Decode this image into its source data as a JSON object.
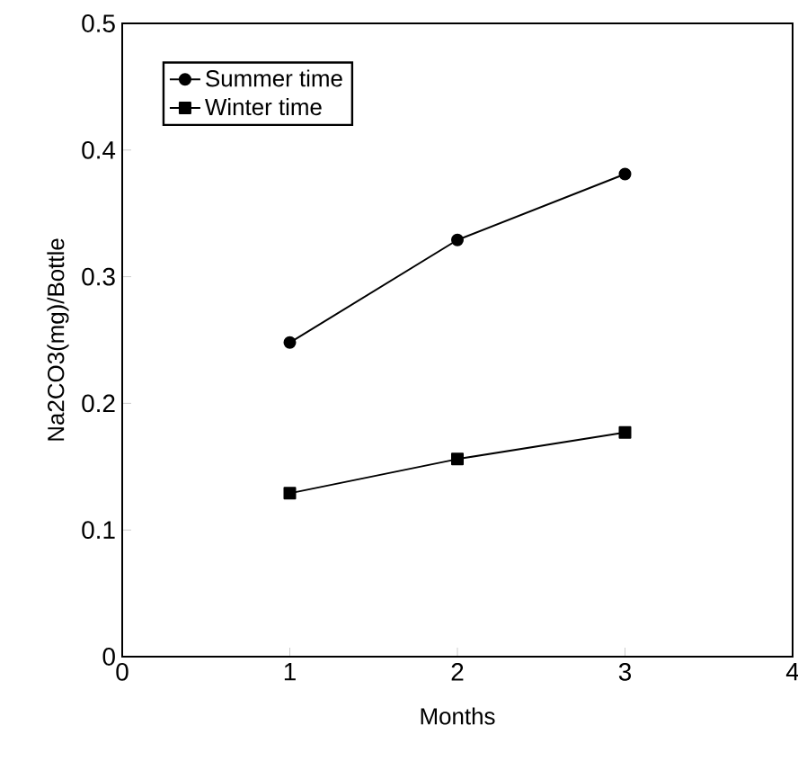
{
  "chart_data": {
    "type": "line",
    "xlabel": "Months",
    "ylabel": "Na2CO3(mg)/Bottle",
    "x": [
      1,
      2,
      3
    ],
    "series": [
      {
        "name": "Summer time",
        "color": "#000000",
        "marker": "circle",
        "values": [
          0.248,
          0.329,
          0.381
        ]
      },
      {
        "name": "Winter time",
        "color": "#000000",
        "marker": "square",
        "values": [
          0.129,
          0.156,
          0.177
        ]
      }
    ],
    "xlim": [
      0,
      4
    ],
    "xticks": [
      0,
      1,
      2,
      3,
      4
    ],
    "ylim": [
      0,
      0.5
    ],
    "yticks": [
      0,
      0.1,
      0.2,
      0.3,
      0.4,
      0.5
    ],
    "legend": "top left",
    "grid": false,
    "line_style": "solid"
  }
}
